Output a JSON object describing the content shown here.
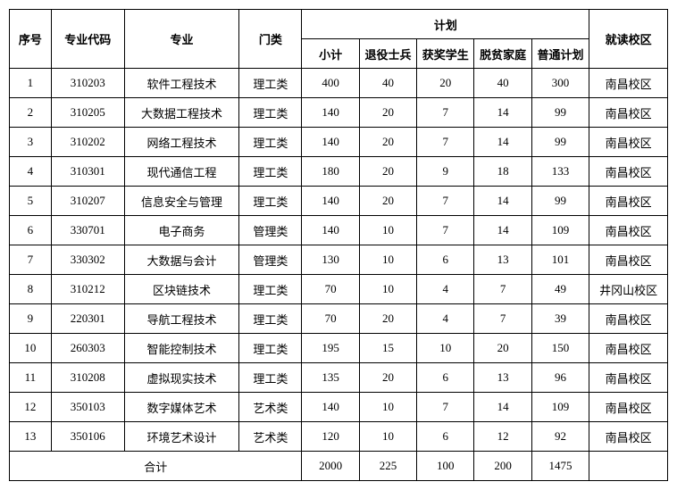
{
  "headers": {
    "seq": "序号",
    "code": "专业代码",
    "major": "专业",
    "category": "门类",
    "plan_group": "计划",
    "subtotal": "小计",
    "retired": "退役士兵",
    "awarded": "获奖学生",
    "poverty": "脱贫家庭",
    "general": "普通计划",
    "campus": "就读校区"
  },
  "rows": [
    {
      "seq": "1",
      "code": "310203",
      "major": "软件工程技术",
      "category": "理工类",
      "subtotal": "400",
      "retired": "40",
      "awarded": "20",
      "poverty": "40",
      "general": "300",
      "campus": "南昌校区"
    },
    {
      "seq": "2",
      "code": "310205",
      "major": "大数据工程技术",
      "category": "理工类",
      "subtotal": "140",
      "retired": "20",
      "awarded": "7",
      "poverty": "14",
      "general": "99",
      "campus": "南昌校区"
    },
    {
      "seq": "3",
      "code": "310202",
      "major": "网络工程技术",
      "category": "理工类",
      "subtotal": "140",
      "retired": "20",
      "awarded": "7",
      "poverty": "14",
      "general": "99",
      "campus": "南昌校区"
    },
    {
      "seq": "4",
      "code": "310301",
      "major": "现代通信工程",
      "category": "理工类",
      "subtotal": "180",
      "retired": "20",
      "awarded": "9",
      "poverty": "18",
      "general": "133",
      "campus": "南昌校区"
    },
    {
      "seq": "5",
      "code": "310207",
      "major": "信息安全与管理",
      "category": "理工类",
      "subtotal": "140",
      "retired": "20",
      "awarded": "7",
      "poverty": "14",
      "general": "99",
      "campus": "南昌校区"
    },
    {
      "seq": "6",
      "code": "330701",
      "major": "电子商务",
      "category": "管理类",
      "subtotal": "140",
      "retired": "10",
      "awarded": "7",
      "poverty": "14",
      "general": "109",
      "campus": "南昌校区"
    },
    {
      "seq": "7",
      "code": "330302",
      "major": "大数据与会计",
      "category": "管理类",
      "subtotal": "130",
      "retired": "10",
      "awarded": "6",
      "poverty": "13",
      "general": "101",
      "campus": "南昌校区"
    },
    {
      "seq": "8",
      "code": "310212",
      "major": "区块链技术",
      "category": "理工类",
      "subtotal": "70",
      "retired": "10",
      "awarded": "4",
      "poverty": "7",
      "general": "49",
      "campus": "井冈山校区"
    },
    {
      "seq": "9",
      "code": "220301",
      "major": "导航工程技术",
      "category": "理工类",
      "subtotal": "70",
      "retired": "20",
      "awarded": "4",
      "poverty": "7",
      "general": "39",
      "campus": "南昌校区"
    },
    {
      "seq": "10",
      "code": "260303",
      "major": "智能控制技术",
      "category": "理工类",
      "subtotal": "195",
      "retired": "15",
      "awarded": "10",
      "poverty": "20",
      "general": "150",
      "campus": "南昌校区"
    },
    {
      "seq": "11",
      "code": "310208",
      "major": "虚拟现实技术",
      "category": "理工类",
      "subtotal": "135",
      "retired": "20",
      "awarded": "6",
      "poverty": "13",
      "general": "96",
      "campus": "南昌校区"
    },
    {
      "seq": "12",
      "code": "350103",
      "major": "数字媒体艺术",
      "category": "艺术类",
      "subtotal": "140",
      "retired": "10",
      "awarded": "7",
      "poverty": "14",
      "general": "109",
      "campus": "南昌校区"
    },
    {
      "seq": "13",
      "code": "350106",
      "major": "环境艺术设计",
      "category": "艺术类",
      "subtotal": "120",
      "retired": "10",
      "awarded": "6",
      "poverty": "12",
      "general": "92",
      "campus": "南昌校区"
    }
  ],
  "total": {
    "label": "合计",
    "subtotal": "2000",
    "retired": "225",
    "awarded": "100",
    "poverty": "200",
    "general": "1475"
  }
}
